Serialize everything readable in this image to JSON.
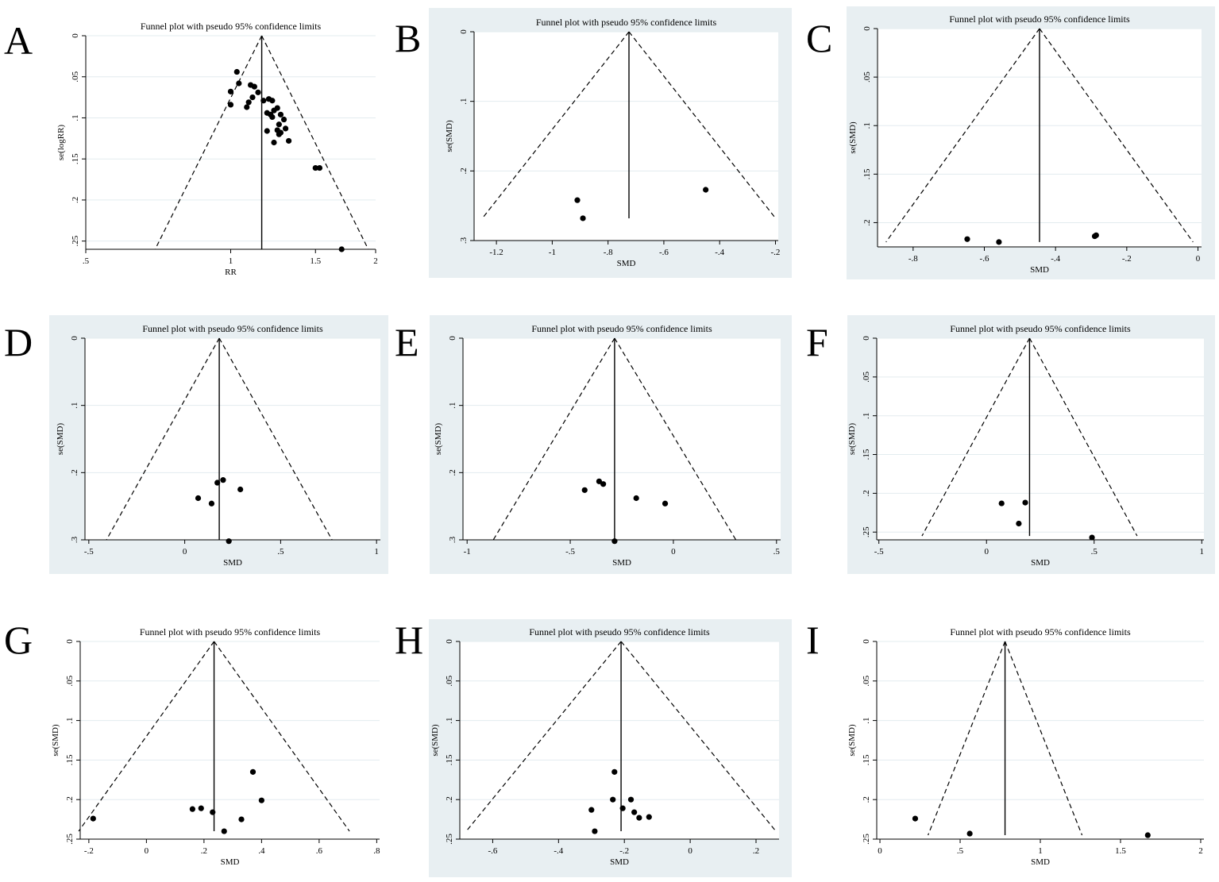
{
  "chart_data": [
    {
      "panel": "A",
      "type": "scatter",
      "shaded": false,
      "title": "Funnel plot with pseudo 95% confidence limits",
      "xlabel": "RR",
      "ylabel": "se(logRR)",
      "xlim": [
        0.5,
        2.0
      ],
      "ylim": [
        0,
        0.26
      ],
      "xticks": [
        0.5,
        1,
        1.5,
        2
      ],
      "xtick_labels": [
        ".5",
        "1",
        "1.5",
        "2"
      ],
      "yticks": [
        0,
        0.05,
        0.1,
        0.15,
        0.2,
        0.25
      ],
      "ytick_labels": [
        "0",
        ".05",
        ".1",
        ".15",
        ".2",
        ".25"
      ],
      "x_log": true,
      "pooled": 1.16,
      "se_max": 0.26,
      "points": [
        [
          1.03,
          0.044
        ],
        [
          1.04,
          0.058
        ],
        [
          1.0,
          0.068
        ],
        [
          1.0,
          0.084
        ],
        [
          1.08,
          0.087
        ],
        [
          1.09,
          0.081
        ],
        [
          1.1,
          0.06
        ],
        [
          1.12,
          0.062
        ],
        [
          1.11,
          0.075
        ],
        [
          1.14,
          0.069
        ],
        [
          1.17,
          0.079
        ],
        [
          1.2,
          0.077
        ],
        [
          1.22,
          0.079
        ],
        [
          1.19,
          0.094
        ],
        [
          1.21,
          0.096
        ],
        [
          1.23,
          0.091
        ],
        [
          1.22,
          0.099
        ],
        [
          1.25,
          0.088
        ],
        [
          1.27,
          0.096
        ],
        [
          1.26,
          0.108
        ],
        [
          1.29,
          0.102
        ],
        [
          1.27,
          0.118
        ],
        [
          1.3,
          0.113
        ],
        [
          1.19,
          0.116
        ],
        [
          1.25,
          0.115
        ],
        [
          1.26,
          0.12
        ],
        [
          1.23,
          0.13
        ],
        [
          1.32,
          0.128
        ],
        [
          1.5,
          0.161
        ],
        [
          1.53,
          0.161
        ],
        [
          1.7,
          0.26
        ]
      ]
    },
    {
      "panel": "B",
      "type": "scatter",
      "shaded": true,
      "title": "Funnel plot with pseudo 95% confidence limits",
      "xlabel": "SMD",
      "ylabel": "se(SMD)",
      "xlim": [
        -1.28,
        -0.19
      ],
      "ylim": [
        0,
        0.3
      ],
      "xticks": [
        -1.2,
        -1,
        -0.8,
        -0.6,
        -0.4,
        -0.2
      ],
      "xtick_labels": [
        "-1.2",
        "-1",
        "-.8",
        "-.6",
        "-.4",
        "-.2"
      ],
      "yticks": [
        0,
        0.1,
        0.2,
        0.3
      ],
      "ytick_labels": [
        "0",
        ".1",
        ".2",
        ".3"
      ],
      "x_log": false,
      "pooled": -0.725,
      "se_max": 0.268,
      "points": [
        [
          -0.91,
          0.242
        ],
        [
          -0.89,
          0.268
        ],
        [
          -0.45,
          0.227
        ]
      ]
    },
    {
      "panel": "C",
      "type": "scatter",
      "shaded": true,
      "title": "Funnel plot with pseudo 95% confidence limits",
      "xlabel": "SMD",
      "ylabel": "se(SMD)",
      "xlim": [
        -0.9,
        0.01
      ],
      "ylim": [
        0,
        0.225
      ],
      "xticks": [
        -0.8,
        -0.6,
        -0.4,
        -0.2,
        0
      ],
      "xtick_labels": [
        "-.8",
        "-.6",
        "-.4",
        "-.2",
        "0"
      ],
      "yticks": [
        0,
        0.05,
        0.1,
        0.15,
        0.2
      ],
      "ytick_labels": [
        "0",
        ".05",
        ".1",
        ".15",
        ".2"
      ],
      "x_log": false,
      "pooled": -0.445,
      "se_max": 0.22,
      "points": [
        [
          -0.648,
          0.217
        ],
        [
          -0.559,
          0.22
        ],
        [
          -0.29,
          0.214
        ],
        [
          -0.286,
          0.213
        ]
      ]
    },
    {
      "panel": "D",
      "type": "scatter",
      "shaded": true,
      "title": "Funnel plot with pseudo 95% confidence limits",
      "xlabel": "SMD",
      "ylabel": "se(SMD)",
      "xlim": [
        -0.52,
        1.02
      ],
      "ylim": [
        0,
        0.3
      ],
      "xticks": [
        -0.5,
        0,
        0.5,
        1
      ],
      "xtick_labels": [
        "-.5",
        "0",
        ".5",
        "1"
      ],
      "yticks": [
        0,
        0.1,
        0.2,
        0.3
      ],
      "ytick_labels": [
        "0",
        ".1",
        ".2",
        ".3"
      ],
      "x_log": false,
      "pooled": 0.18,
      "se_max": 0.3,
      "points": [
        [
          0.07,
          0.238
        ],
        [
          0.14,
          0.246
        ],
        [
          0.17,
          0.215
        ],
        [
          0.2,
          0.211
        ],
        [
          0.29,
          0.225
        ],
        [
          0.23,
          0.302
        ]
      ]
    },
    {
      "panel": "E",
      "type": "scatter",
      "shaded": true,
      "title": "Funnel plot with pseudo 95% confidence limits",
      "xlabel": "SMD",
      "ylabel": "se(SMD)",
      "xlim": [
        -1.02,
        0.52
      ],
      "ylim": [
        0,
        0.3
      ],
      "xticks": [
        -1,
        -0.5,
        0,
        0.5
      ],
      "xtick_labels": [
        "-1",
        "-.5",
        "0",
        ".5"
      ],
      "yticks": [
        0,
        0.1,
        0.2,
        0.3
      ],
      "ytick_labels": [
        "0",
        ".1",
        ".2",
        ".3"
      ],
      "x_log": false,
      "pooled": -0.285,
      "se_max": 0.3,
      "points": [
        [
          -0.43,
          0.226
        ],
        [
          -0.36,
          0.213
        ],
        [
          -0.34,
          0.217
        ],
        [
          -0.18,
          0.238
        ],
        [
          -0.04,
          0.246
        ],
        [
          -0.285,
          0.302
        ]
      ]
    },
    {
      "panel": "F",
      "type": "scatter",
      "shaded": true,
      "title": "Funnel plot with pseudo 95% confidence limits",
      "xlabel": "SMD",
      "ylabel": "se(SMD)",
      "xlim": [
        -0.51,
        1.01
      ],
      "ylim": [
        0,
        0.26
      ],
      "xticks": [
        -0.5,
        0,
        0.5,
        1
      ],
      "xtick_labels": [
        "-.5",
        "0",
        ".5",
        "1"
      ],
      "yticks": [
        0,
        0.05,
        0.1,
        0.15,
        0.2,
        0.25
      ],
      "ytick_labels": [
        "0",
        ".05",
        ".1",
        ".15",
        ".2",
        ".25"
      ],
      "x_log": false,
      "pooled": 0.2,
      "se_max": 0.255,
      "points": [
        [
          0.07,
          0.213
        ],
        [
          0.15,
          0.239
        ],
        [
          0.18,
          0.212
        ],
        [
          0.49,
          0.257
        ]
      ]
    },
    {
      "panel": "G",
      "type": "scatter",
      "shaded": false,
      "title": "Funnel plot with pseudo 95% confidence limits",
      "xlabel": "SMD",
      "ylabel": "se(SMD)",
      "xlim": [
        -0.23,
        0.81
      ],
      "ylim": [
        0,
        0.25
      ],
      "xticks": [
        -0.2,
        0,
        0.2,
        0.4,
        0.6,
        0.8
      ],
      "xtick_labels": [
        "-.2",
        "0",
        ".2",
        ".4",
        ".6",
        ".8"
      ],
      "yticks": [
        0,
        0.05,
        0.1,
        0.15,
        0.2,
        0.25
      ],
      "ytick_labels": [
        "0",
        ".05",
        ".1",
        ".15",
        ".2",
        ".25"
      ],
      "x_log": false,
      "pooled": 0.235,
      "se_max": 0.24,
      "points": [
        [
          -0.185,
          0.224
        ],
        [
          0.16,
          0.212
        ],
        [
          0.19,
          0.211
        ],
        [
          0.23,
          0.216
        ],
        [
          0.27,
          0.24
        ],
        [
          0.33,
          0.225
        ],
        [
          0.37,
          0.165
        ],
        [
          0.4,
          0.201
        ]
      ]
    },
    {
      "panel": "H",
      "type": "scatter",
      "shaded": true,
      "title": "Funnel plot with pseudo 95% confidence limits",
      "xlabel": "SMD",
      "ylabel": "se(SMD)",
      "xlim": [
        -0.7,
        0.27
      ],
      "ylim": [
        0,
        0.25
      ],
      "xticks": [
        -0.6,
        -0.4,
        -0.2,
        0,
        0.2
      ],
      "xtick_labels": [
        "-.6",
        "-.4",
        "-.2",
        "0",
        ".2"
      ],
      "yticks": [
        0,
        0.05,
        0.1,
        0.15,
        0.2,
        0.25
      ],
      "ytick_labels": [
        "0",
        ".05",
        ".1",
        ".15",
        ".2",
        ".25"
      ],
      "x_log": false,
      "pooled": -0.21,
      "se_max": 0.24,
      "points": [
        [
          -0.3,
          0.213
        ],
        [
          -0.29,
          0.24
        ],
        [
          -0.235,
          0.2
        ],
        [
          -0.23,
          0.165
        ],
        [
          -0.205,
          0.211
        ],
        [
          -0.18,
          0.2
        ],
        [
          -0.17,
          0.216
        ],
        [
          -0.155,
          0.223
        ],
        [
          -0.125,
          0.222
        ]
      ]
    },
    {
      "panel": "I",
      "type": "scatter",
      "shaded": false,
      "title": "Funnel plot with pseudo 95% confidence limits",
      "xlabel": "SMD",
      "ylabel": "se(SMD)",
      "xlim": [
        -0.02,
        2.02
      ],
      "ylim": [
        0,
        0.25
      ],
      "xticks": [
        0,
        0.5,
        1,
        1.5,
        2
      ],
      "xtick_labels": [
        "0",
        ".5",
        "1",
        "1.5",
        "2"
      ],
      "yticks": [
        0,
        0.05,
        0.1,
        0.15,
        0.2,
        0.25
      ],
      "ytick_labels": [
        "0",
        ".05",
        ".1",
        ".15",
        ".2",
        ".25"
      ],
      "x_log": false,
      "pooled": 0.78,
      "se_max": 0.245,
      "points": [
        [
          0.22,
          0.224
        ],
        [
          0.56,
          0.243
        ],
        [
          1.67,
          0.245
        ]
      ]
    }
  ]
}
